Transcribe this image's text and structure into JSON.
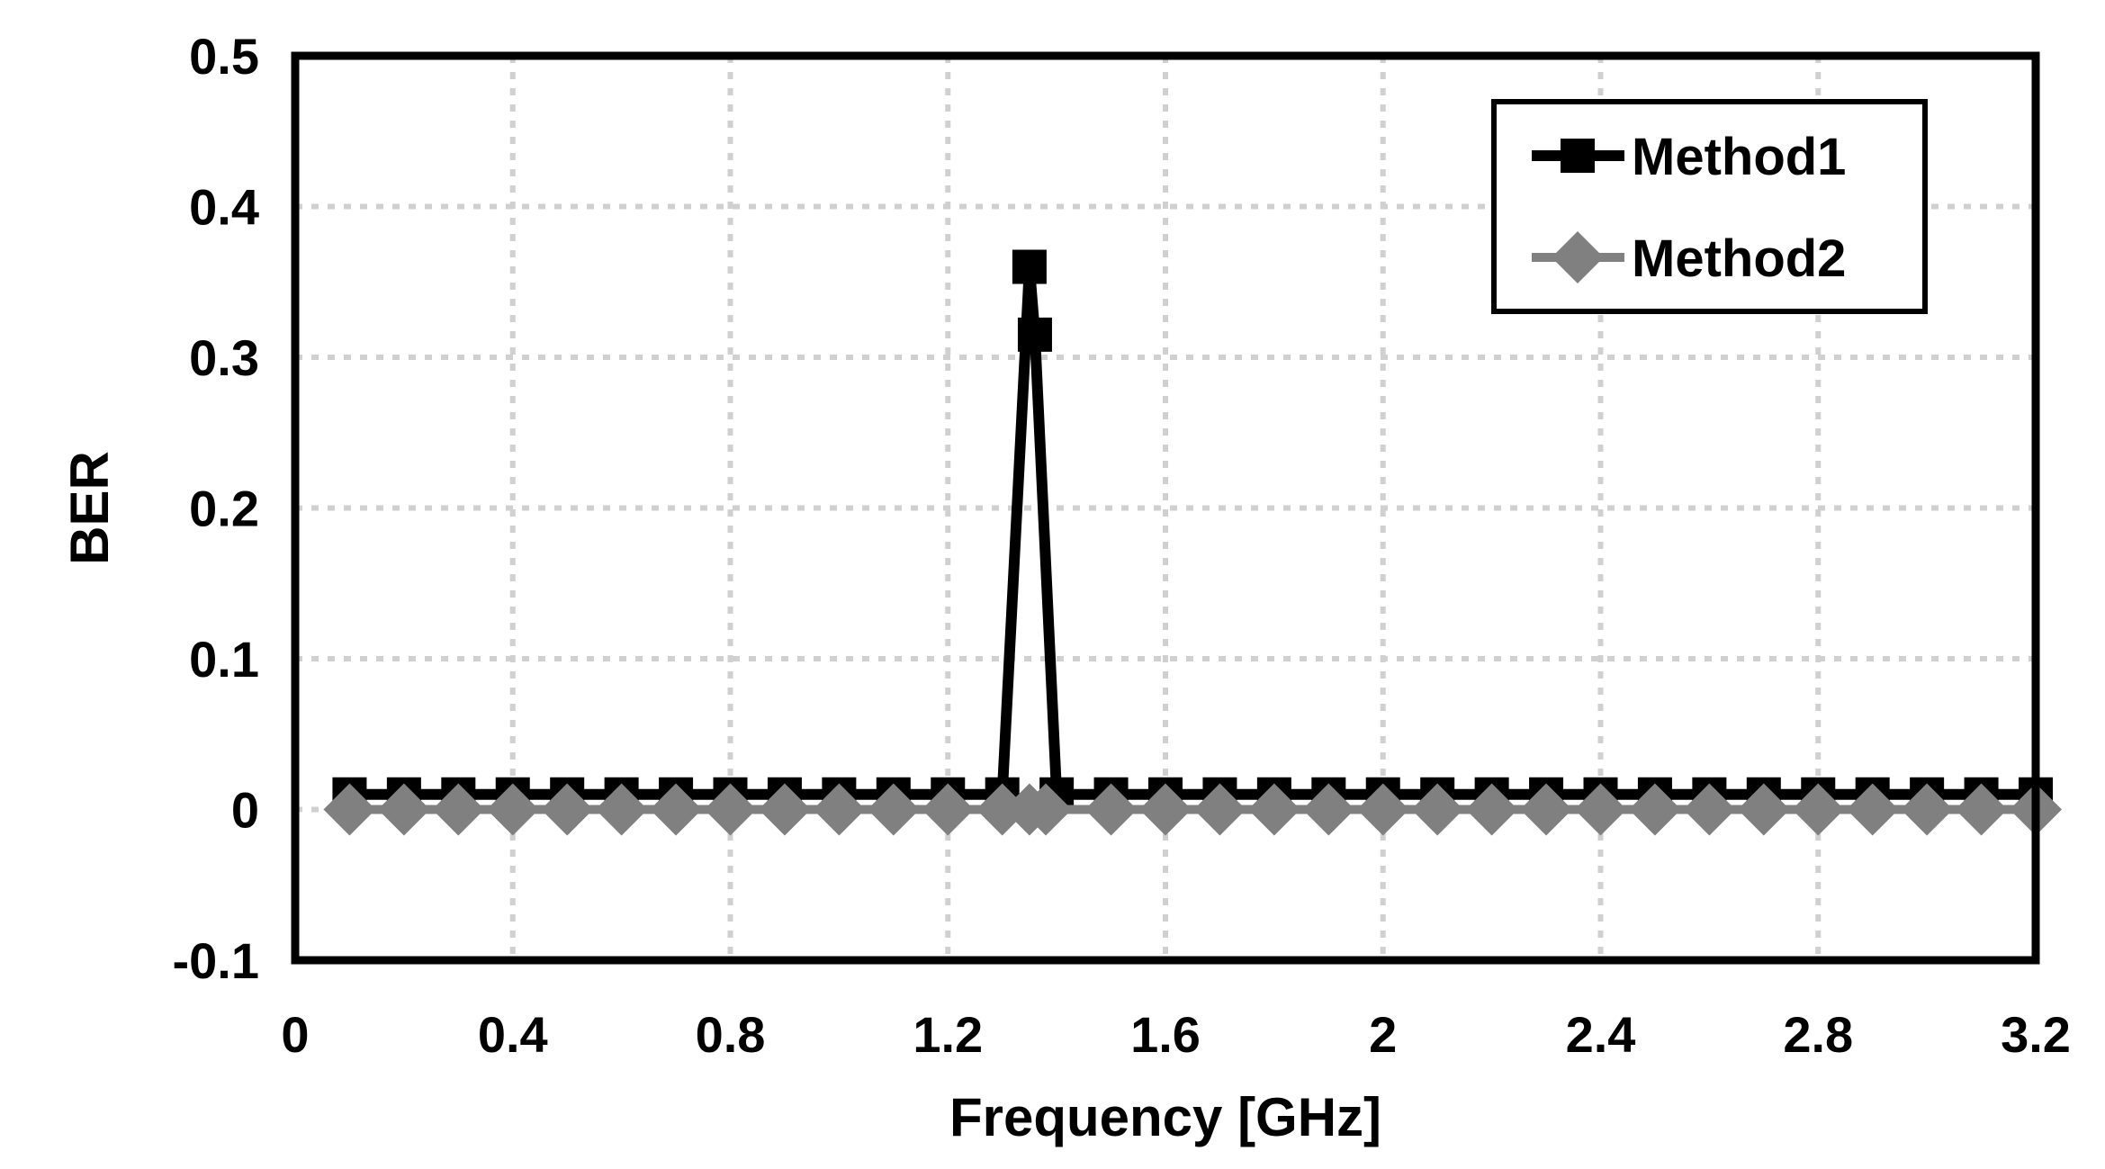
{
  "chart_data": {
    "type": "line",
    "xlabel": "Frequency [GHz]",
    "ylabel": "BER",
    "xlim": [
      0,
      3.2
    ],
    "ylim": [
      -0.1,
      0.5
    ],
    "xticks": [
      0,
      0.4,
      0.8,
      1.2,
      1.6,
      2,
      2.4,
      2.8,
      3.2
    ],
    "xtick_labels": [
      "0",
      "0.4",
      "0.8",
      "1.2",
      "1.6",
      "2",
      "2.4",
      "2.8",
      "3.2"
    ],
    "yticks": [
      -0.1,
      0,
      0.1,
      0.2,
      0.3,
      0.4,
      0.5
    ],
    "ytick_labels": [
      "-0.1",
      "0",
      "0.1",
      "0.2",
      "0.3",
      "0.4",
      "0.5"
    ],
    "grid": true,
    "legend_position": "top-right",
    "series": [
      {
        "name": "Method1",
        "color": "#000000",
        "marker": "square",
        "x": [
          0.1,
          0.2,
          0.3,
          0.4,
          0.5,
          0.6,
          0.7,
          0.8,
          0.9,
          1.0,
          1.1,
          1.2,
          1.3,
          1.35,
          1.36,
          1.4,
          1.5,
          1.6,
          1.7,
          1.8,
          1.9,
          2.0,
          2.1,
          2.2,
          2.3,
          2.4,
          2.5,
          2.6,
          2.7,
          2.8,
          2.9,
          3.0,
          3.1,
          3.2
        ],
        "y": [
          0.01,
          0.01,
          0.01,
          0.01,
          0.01,
          0.01,
          0.01,
          0.01,
          0.01,
          0.01,
          0.01,
          0.01,
          0.01,
          0.36,
          0.315,
          0.01,
          0.01,
          0.01,
          0.01,
          0.01,
          0.01,
          0.01,
          0.01,
          0.01,
          0.01,
          0.01,
          0.01,
          0.01,
          0.01,
          0.01,
          0.01,
          0.01,
          0.01,
          0.01
        ]
      },
      {
        "name": "Method2",
        "color": "#808080",
        "marker": "diamond",
        "x": [
          0.1,
          0.2,
          0.3,
          0.4,
          0.5,
          0.6,
          0.7,
          0.8,
          0.9,
          1.0,
          1.1,
          1.2,
          1.3,
          1.35,
          1.38,
          1.5,
          1.6,
          1.7,
          1.8,
          1.9,
          2.0,
          2.1,
          2.2,
          2.3,
          2.4,
          2.5,
          2.6,
          2.7,
          2.8,
          2.9,
          3.0,
          3.1,
          3.2
        ],
        "y": [
          0,
          0,
          0,
          0,
          0,
          0,
          0,
          0,
          0,
          0,
          0,
          0,
          0,
          0,
          0,
          0,
          0,
          0,
          0,
          0,
          0,
          0,
          0,
          0,
          0,
          0,
          0,
          0,
          0,
          0,
          0,
          0,
          0
        ]
      }
    ]
  }
}
